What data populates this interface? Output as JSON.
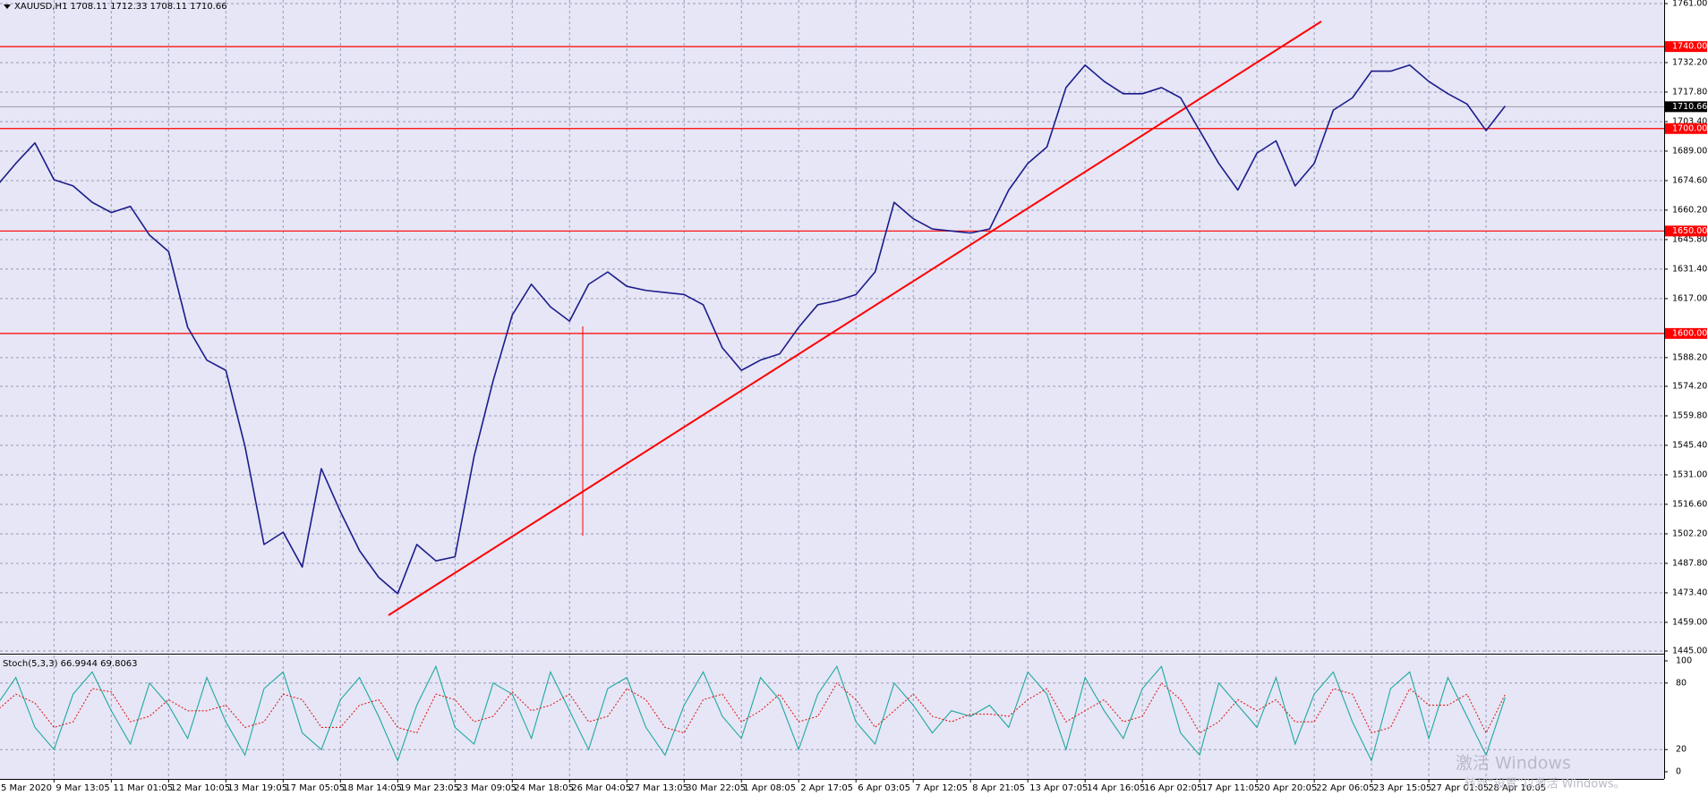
{
  "chart_data": [
    {
      "type": "line",
      "title": "XAUUSD,H1  1708.11 1712.33 1708.11 1710.66",
      "categories": [
        "5 Mar 2020",
        null,
        null,
        "9 Mar 13:05",
        null,
        null,
        "11 Mar 01:05",
        null,
        null,
        "12 Mar 10:05",
        null,
        null,
        "13 Mar 19:05",
        null,
        null,
        "17 Mar 05:05",
        null,
        null,
        "18 Mar 14:05",
        null,
        null,
        "19 Mar 23:05",
        null,
        null,
        "23 Mar 09:05",
        null,
        null,
        "24 Mar 18:05",
        null,
        null,
        "26 Mar 04:05",
        null,
        null,
        "27 Mar 13:05",
        null,
        null,
        "30 Mar 22:05",
        null,
        null,
        "1 Apr 08:05",
        null,
        null,
        "2 Apr 17:05",
        null,
        null,
        "6 Apr 03:05",
        null,
        null,
        "7 Apr 12:05",
        null,
        null,
        "8 Apr 21:05",
        null,
        null,
        "13 Apr 07:05",
        null,
        null,
        "14 Apr 16:05",
        null,
        null,
        "16 Apr 02:05",
        null,
        null,
        "17 Apr 11:05",
        null,
        null,
        "20 Apr 20:05",
        null,
        null,
        "22 Apr 06:05",
        null,
        null,
        "23 Apr 15:05",
        null,
        null,
        "27 Apr 01:05",
        null,
        null,
        "28 Apr 10:05",
        null
      ],
      "values": [
        1672,
        1683,
        1693,
        1675,
        1672,
        1664,
        1659,
        1662,
        1648,
        1640,
        1603,
        1587,
        1582,
        1545,
        1497,
        1503,
        1486,
        1534,
        1513,
        1494,
        1481,
        1473,
        1497,
        1489,
        1491,
        1540,
        1577,
        1609,
        1624,
        1613,
        1606,
        1624,
        1630,
        1623,
        1621,
        1620,
        1619,
        1614,
        1593,
        1582,
        1587,
        1590,
        1603,
        1614,
        1616,
        1619,
        1630,
        1664,
        1656,
        1651,
        1650,
        1649,
        1651,
        1670,
        1683,
        1691,
        1720,
        1731,
        1723,
        1717,
        1717,
        1720,
        1715,
        1699,
        1683,
        1670,
        1688,
        1694,
        1672,
        1683,
        1709,
        1715,
        1728,
        1728,
        1731,
        1723,
        1717,
        1712,
        1699,
        1711
      ],
      "color": "#1c1c8c",
      "ylim": [
        1445,
        1761
      ],
      "yticks": [
        {
          "value": 1761,
          "label": "1761.00"
        },
        {
          "value": 1732.2,
          "label": "1732.20"
        },
        {
          "value": 1717.8,
          "label": "1717.80"
        },
        {
          "value": 1703.4,
          "label": "1703.40"
        },
        {
          "value": 1689,
          "label": "1689.00"
        },
        {
          "value": 1674.6,
          "label": "1674.60"
        },
        {
          "value": 1660.2,
          "label": "1660.20"
        },
        {
          "value": 1645.8,
          "label": "1645.80"
        },
        {
          "value": 1631.4,
          "label": "1631.40"
        },
        {
          "value": 1617,
          "label": "1617.00"
        },
        {
          "value": 1588.2,
          "label": "1588.20"
        },
        {
          "value": 1574.2,
          "label": "1574.20"
        },
        {
          "value": 1559.8,
          "label": "1559.80"
        },
        {
          "value": 1545.4,
          "label": "1545.40"
        },
        {
          "value": 1531,
          "label": "1531.00"
        },
        {
          "value": 1516.6,
          "label": "1516.60"
        },
        {
          "value": 1502.2,
          "label": "1502.20"
        },
        {
          "value": 1487.8,
          "label": "1487.80"
        },
        {
          "value": 1473.4,
          "label": "1473.40"
        },
        {
          "value": 1459,
          "label": "1459.00"
        },
        {
          "value": 1445,
          "label": "1445.00"
        }
      ],
      "levels": [
        {
          "value": 1740,
          "label": "1740.00"
        },
        {
          "value": 1700,
          "label": "1700.00"
        },
        {
          "value": 1650,
          "label": "1650.00"
        },
        {
          "value": 1600,
          "label": "1600.00"
        }
      ],
      "level_color": "#ff0000",
      "current_price": {
        "value": 1710.66,
        "label": "1710.66"
      },
      "grid": true
    },
    {
      "type": "line",
      "title": "Stoch(5,3,3) 66.9944 69.8063",
      "ylim": [
        0,
        100
      ],
      "yticks": [
        100,
        80,
        20,
        0
      ],
      "grid": true,
      "series": [
        {
          "name": "Main",
          "color": "#20a8a0",
          "values": [
            60,
            85,
            40,
            20,
            70,
            90,
            55,
            25,
            80,
            60,
            30,
            85,
            45,
            15,
            75,
            90,
            35,
            20,
            65,
            85,
            50,
            10,
            60,
            95,
            40,
            25,
            80,
            70,
            30,
            90,
            55,
            20,
            75,
            85,
            40,
            15,
            60,
            90,
            50,
            30,
            85,
            65,
            20,
            70,
            95,
            45,
            25,
            80,
            60,
            35,
            55,
            50,
            60,
            40,
            90,
            70,
            20,
            85,
            55,
            30,
            75,
            95,
            35,
            15,
            80,
            60,
            40,
            85,
            25,
            70,
            90,
            45,
            10,
            75,
            90,
            30,
            85,
            50,
            15,
            66.9944
          ]
        },
        {
          "name": "Signal",
          "color": "#e02020",
          "values": [
            55,
            70,
            62,
            40,
            45,
            75,
            72,
            45,
            50,
            65,
            55,
            55,
            60,
            40,
            45,
            70,
            65,
            40,
            40,
            60,
            65,
            40,
            35,
            70,
            65,
            45,
            50,
            72,
            55,
            60,
            70,
            45,
            50,
            75,
            65,
            40,
            35,
            65,
            70,
            45,
            55,
            70,
            45,
            50,
            80,
            65,
            40,
            55,
            70,
            50,
            45,
            52,
            52,
            50,
            65,
            75,
            45,
            55,
            65,
            45,
            50,
            80,
            65,
            35,
            45,
            65,
            55,
            65,
            45,
            45,
            75,
            70,
            35,
            40,
            75,
            60,
            60,
            70,
            35,
            69.8063
          ]
        }
      ]
    }
  ],
  "watermark": {
    "title": "激活 Windows",
    "subtitle": "转到“设置”以激活 Windows。"
  }
}
